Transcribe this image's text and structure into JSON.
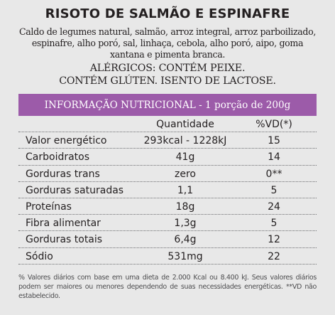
{
  "product": {
    "title": "RISOTO DE SALMÃO E ESPINAFRE",
    "ingredients": "Caldo de legumes natural, salmão, arroz integral, arroz parboilizado, espinafre, alho poró, sal, linhaça, cebola, alho poró, aipo, goma xantana e pimenta branca.",
    "allergen_line_1": "ALÉRGICOS: CONTÉM PEIXE.",
    "allergen_line_2": "CONTÉM GLÚTEN. ISENTO DE LACTOSE."
  },
  "nutrition": {
    "header": "INFORMAÇÃO NUTRICIONAL - 1 porção de 200g",
    "col_quantity": "Quantidade",
    "col_vd": "%VD(*)",
    "rows": [
      {
        "name": "Valor energético",
        "qty": "293kcal - 1228kJ",
        "vd": "15"
      },
      {
        "name": "Carboidratos",
        "qty": "41g",
        "vd": "14"
      },
      {
        "name": "Gorduras trans",
        "qty": "zero",
        "vd": "0**"
      },
      {
        "name": "Gorduras saturadas",
        "qty": "1,1",
        "vd": "5"
      },
      {
        "name": "Proteínas",
        "qty": "18g",
        "vd": "24"
      },
      {
        "name": "Fibra alimentar",
        "qty": "1,3g",
        "vd": "5"
      },
      {
        "name": "Gorduras totais",
        "qty": "6,4g",
        "vd": "12"
      },
      {
        "name": "Sódio",
        "qty": "531mg",
        "vd": "22"
      }
    ],
    "footnote": "% Valores diários com base em uma dieta de 2.000 Kcal ou 8.400 kJ. Seus valores diários podem ser maiores ou menores dependendo de suas necessidades energéticas. **VD não estabelecido."
  },
  "colors": {
    "background": "#e8e8e8",
    "header_bar": "#9c5ba9",
    "text": "#231f20"
  }
}
